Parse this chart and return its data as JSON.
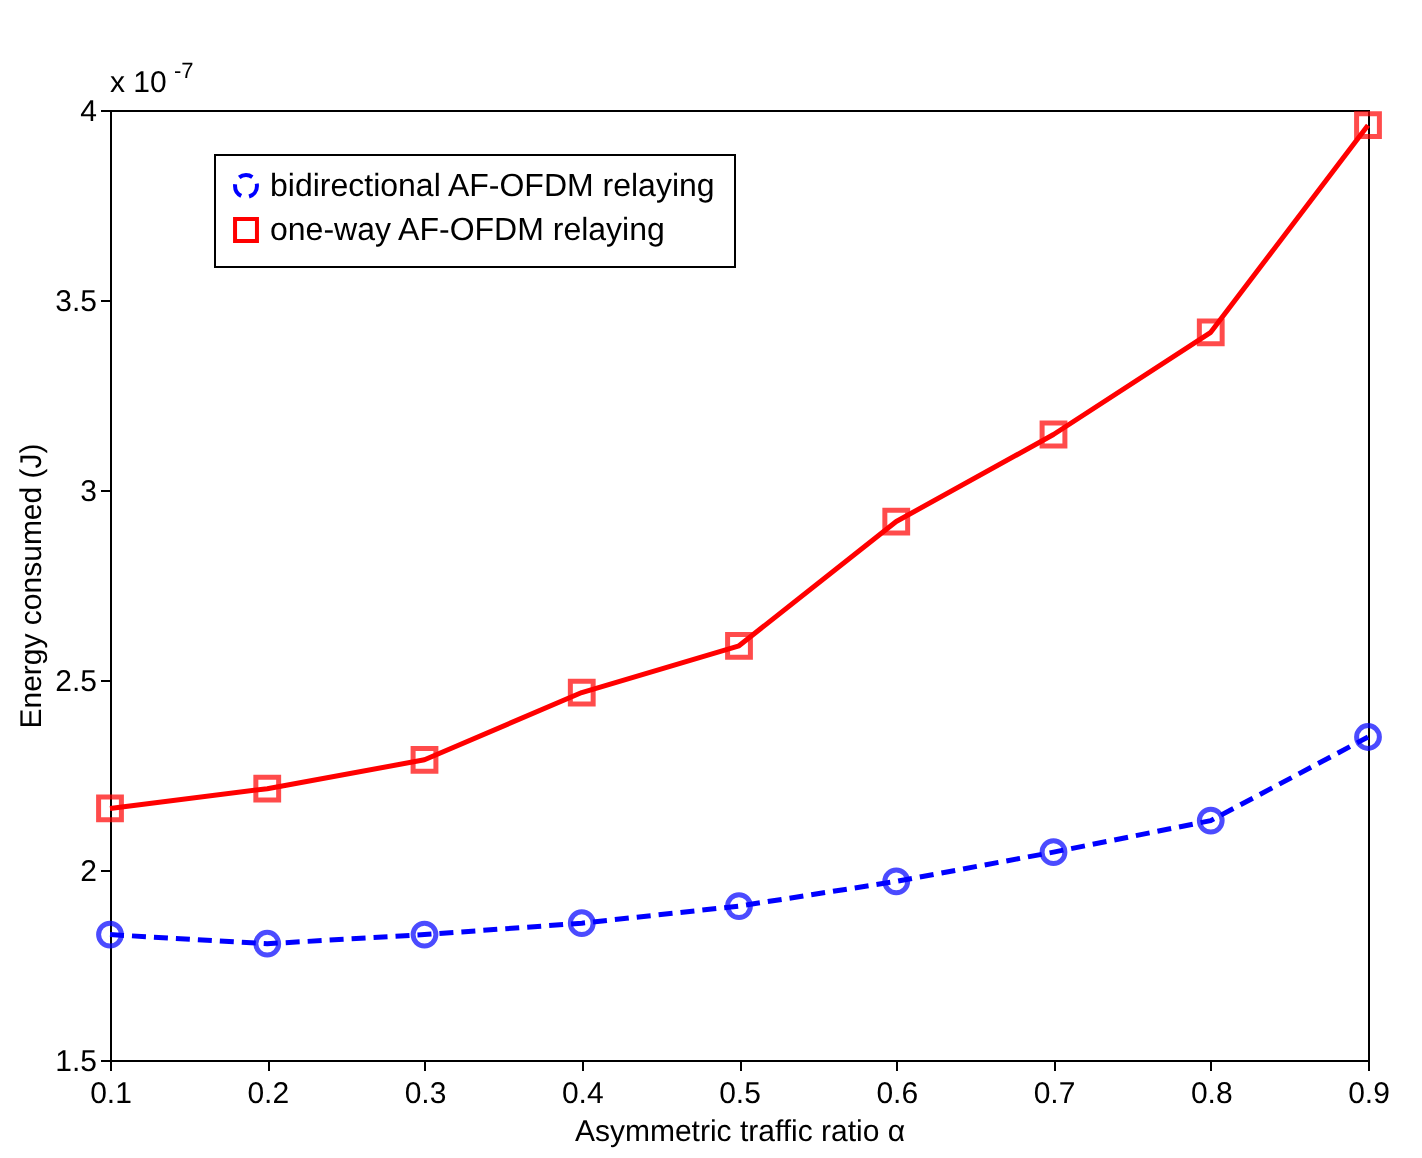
{
  "chart_data": {
    "type": "line",
    "xlabel": "Asymmetric traffic ratio α",
    "ylabel": "Energy consumed (J)",
    "annotations": [
      "x 10$^{-7}$"
    ],
    "x": [
      0.1,
      0.2,
      0.3,
      0.4,
      0.5,
      0.6,
      0.7,
      0.8,
      0.9
    ],
    "series": [
      {
        "name": "bidirectional AF-OFDM relaying",
        "color": "#0000ff",
        "marker": "circle",
        "line_style": "dashed",
        "values": [
          1.83,
          1.806,
          1.83,
          1.86,
          1.905,
          1.97,
          2.047,
          2.13,
          2.35
        ]
      },
      {
        "name": "one-way AF-OFDM relaying",
        "color": "#ff0000",
        "marker": "square",
        "line_style": "solid",
        "values": [
          2.162,
          2.214,
          2.29,
          2.467,
          2.59,
          2.917,
          3.146,
          3.415,
          3.96
        ]
      }
    ],
    "xlim": [
      0.1,
      0.9
    ],
    "xticks": [
      0.1,
      0.2,
      0.3,
      0.4,
      0.5,
      0.6,
      0.7,
      0.8,
      0.9
    ],
    "ylim": [
      1.5,
      4
    ],
    "yticks": [
      1.5,
      2,
      2.5,
      3,
      3.5,
      4
    ],
    "grid": false,
    "legend": "top left"
  }
}
